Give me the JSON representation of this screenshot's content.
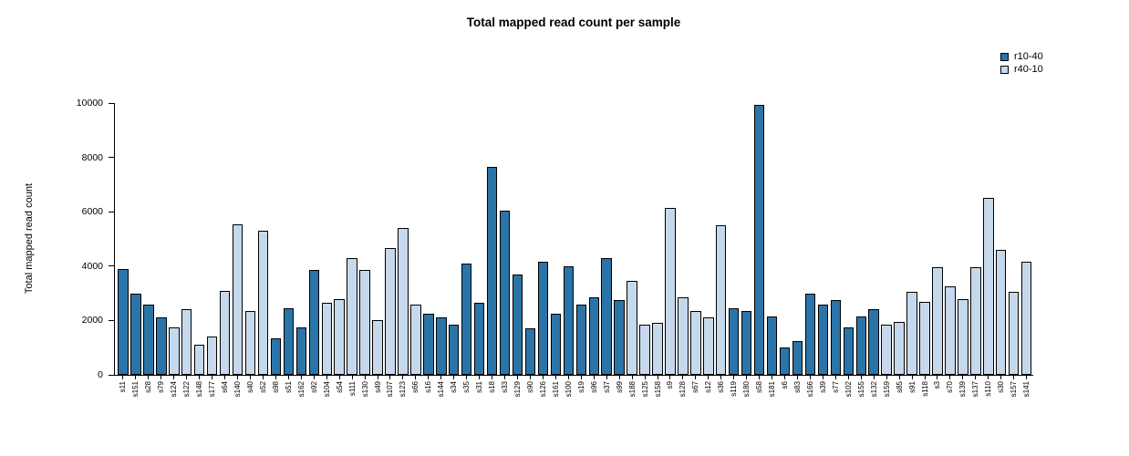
{
  "chart_data": {
    "type": "bar",
    "title": "Total mapped read count per sample",
    "xlabel": "",
    "ylabel": "Total mapped read count",
    "ylim": [
      0,
      10000
    ],
    "yticks": [
      0,
      2000,
      4000,
      6000,
      8000,
      10000
    ],
    "grid": false,
    "legend_position": "top-right",
    "legend": [
      {
        "label": "r10-40",
        "color": "#2b74a8"
      },
      {
        "label": "r40-10",
        "color": "#c6d9ec"
      }
    ],
    "categories": [
      "s11",
      "s151",
      "s28",
      "s79",
      "s124",
      "s122",
      "s148",
      "s177",
      "s64",
      "s140",
      "s40",
      "s52",
      "s98",
      "s51",
      "s162",
      "s92",
      "s104",
      "s54",
      "s111",
      "s130",
      "s49",
      "s107",
      "s123",
      "s66",
      "s16",
      "s144",
      "s34",
      "s35",
      "s31",
      "s18",
      "s33",
      "s129",
      "s90",
      "s126",
      "s161",
      "s100",
      "s19",
      "s96",
      "s37",
      "s99",
      "s188",
      "s125",
      "s158",
      "s9",
      "s128",
      "s67",
      "s12",
      "s36",
      "s119",
      "s180",
      "s58",
      "s181",
      "s6",
      "s83",
      "s166",
      "s39",
      "s77",
      "s102",
      "s155",
      "s132",
      "s159",
      "s85",
      "s91",
      "s118",
      "s3",
      "s70",
      "s139",
      "s137",
      "s110",
      "s30",
      "s157",
      "s141"
    ],
    "values": [
      3900,
      3000,
      2600,
      2100,
      1750,
      2400,
      1100,
      1400,
      3100,
      5550,
      2350,
      5300,
      1350,
      2450,
      1750,
      3850,
      2650,
      2800,
      4300,
      3850,
      2000,
      4650,
      5400,
      2600,
      2250,
      2100,
      1850,
      4100,
      2650,
      7650,
      6050,
      3700,
      1700,
      4150,
      2250,
      4000,
      2600,
      2850,
      4300,
      2750,
      3450,
      1850,
      1900,
      6150,
      2850,
      2350,
      2100,
      5500,
      2450,
      2350,
      9950,
      2150,
      1000,
      1250,
      3000,
      2600,
      2750,
      1750,
      2150,
      2400,
      1850,
      1950,
      3050,
      2700,
      3950,
      3250,
      2800,
      3950,
      6500,
      4600,
      3050,
      4150
    ],
    "groups": [
      "r10-40",
      "r10-40",
      "r10-40",
      "r10-40",
      "r40-10",
      "r40-10",
      "r40-10",
      "r40-10",
      "r40-10",
      "r40-10",
      "r40-10",
      "r40-10",
      "r10-40",
      "r10-40",
      "r10-40",
      "r10-40",
      "r40-10",
      "r40-10",
      "r40-10",
      "r40-10",
      "r40-10",
      "r40-10",
      "r40-10",
      "r40-10",
      "r10-40",
      "r10-40",
      "r10-40",
      "r10-40",
      "r10-40",
      "r10-40",
      "r10-40",
      "r10-40",
      "r10-40",
      "r10-40",
      "r10-40",
      "r10-40",
      "r10-40",
      "r10-40",
      "r10-40",
      "r10-40",
      "r40-10",
      "r40-10",
      "r40-10",
      "r40-10",
      "r40-10",
      "r40-10",
      "r40-10",
      "r40-10",
      "r10-40",
      "r10-40",
      "r10-40",
      "r10-40",
      "r10-40",
      "r10-40",
      "r10-40",
      "r10-40",
      "r10-40",
      "r10-40",
      "r10-40",
      "r10-40",
      "r40-10",
      "r40-10",
      "r40-10",
      "r40-10",
      "r40-10",
      "r40-10",
      "r40-10",
      "r40-10",
      "r40-10",
      "r40-10",
      "r40-10",
      "r40-10"
    ]
  }
}
